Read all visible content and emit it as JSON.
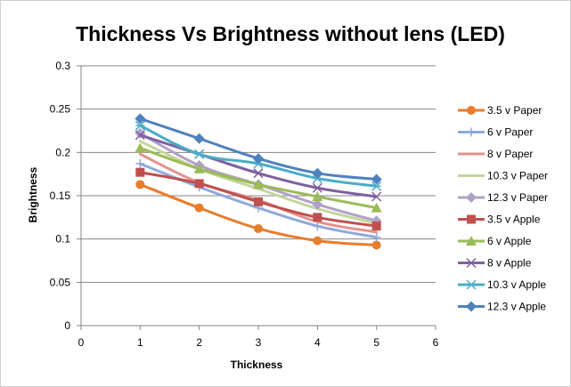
{
  "chart_data": {
    "type": "line",
    "title": "Thickness Vs Brightness without lens (LED)",
    "xlabel": "Thickness",
    "ylabel": "Brightness",
    "xlim": [
      0,
      6
    ],
    "ylim": [
      0,
      0.3
    ],
    "x_ticks": [
      "0",
      "1",
      "2",
      "3",
      "4",
      "5",
      "6"
    ],
    "y_ticks": [
      "0",
      "0.05",
      "0.1",
      "0.15",
      "0.2",
      "0.25",
      "0.3"
    ],
    "grid": true,
    "legend_position": "right",
    "x": [
      1,
      2,
      3,
      4,
      5
    ],
    "series": [
      {
        "name": "3.5 v Paper",
        "color": "#E87D2B",
        "marker": "circle",
        "values": [
          0.163,
          0.136,
          0.112,
          0.098,
          0.093
        ]
      },
      {
        "name": "6 v Paper",
        "color": "#8EA9DB",
        "marker": "plus",
        "values": [
          0.187,
          0.16,
          0.136,
          0.115,
          0.102
        ]
      },
      {
        "name": "8 v Paper",
        "color": "#E6908C",
        "marker": "none",
        "values": [
          0.198,
          0.165,
          0.145,
          0.12,
          0.108
        ]
      },
      {
        "name": "10.3 v Paper",
        "color": "#C3D69B",
        "marker": "none",
        "values": [
          0.213,
          0.181,
          0.158,
          0.135,
          0.118
        ]
      },
      {
        "name": "12.3 v Paper",
        "color": "#B2A1C7",
        "marker": "diamond",
        "values": [
          0.222,
          0.185,
          0.163,
          0.14,
          0.121
        ]
      },
      {
        "name": "3.5 v Apple",
        "color": "#C0504D",
        "marker": "square",
        "values": [
          0.177,
          0.164,
          0.143,
          0.125,
          0.115
        ]
      },
      {
        "name": "6 v Apple",
        "color": "#9BBB59",
        "marker": "triangle",
        "values": [
          0.205,
          0.181,
          0.163,
          0.149,
          0.136
        ]
      },
      {
        "name": "8 v Apple",
        "color": "#7F5FA0",
        "marker": "x",
        "values": [
          0.22,
          0.198,
          0.176,
          0.159,
          0.149
        ]
      },
      {
        "name": "10.3 v  Apple",
        "color": "#4BACC6",
        "marker": "asterisk",
        "values": [
          0.231,
          0.198,
          0.187,
          0.17,
          0.161
        ]
      },
      {
        "name": "12.3 v Apple",
        "color": "#4F81BD",
        "marker": "diamond",
        "values": [
          0.239,
          0.216,
          0.193,
          0.176,
          0.169
        ]
      }
    ]
  }
}
